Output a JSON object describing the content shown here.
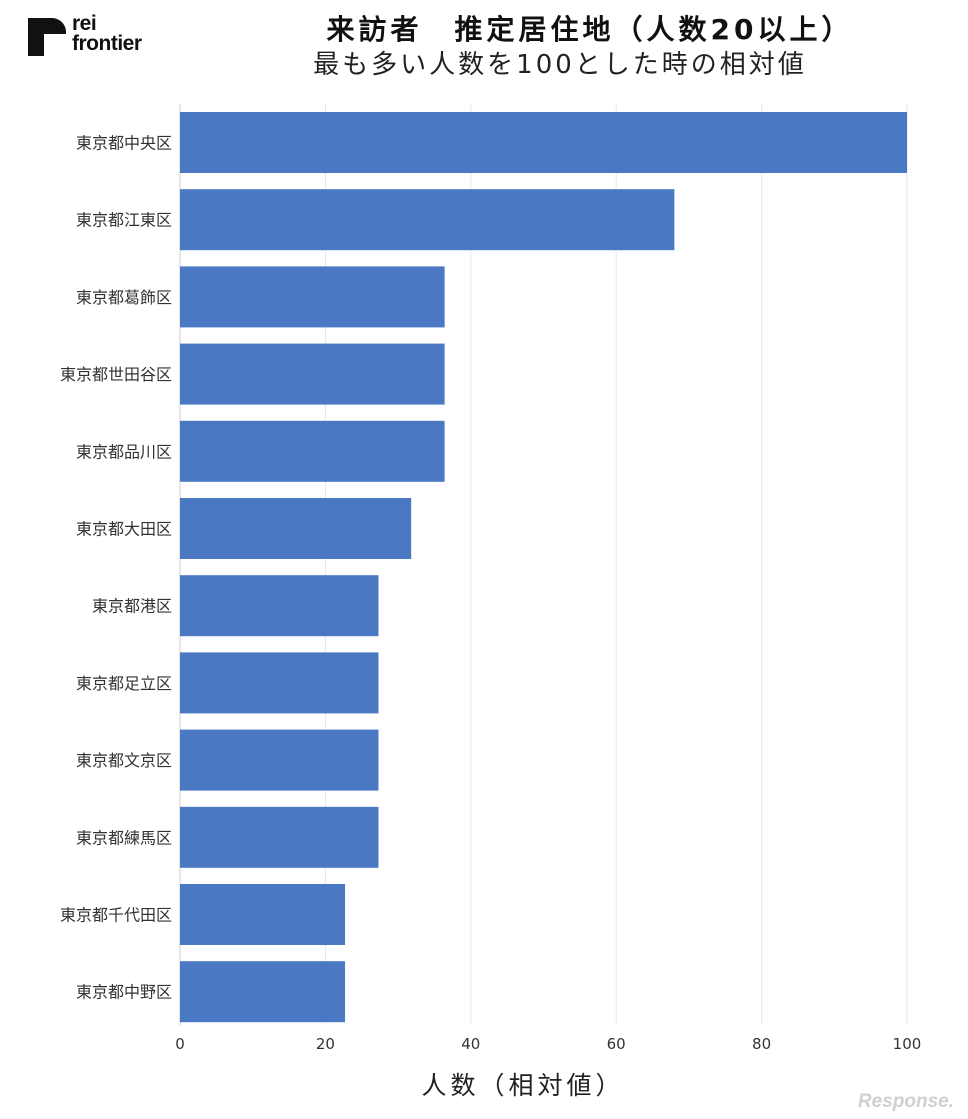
{
  "logo": {
    "line1": "rei",
    "line2": "frontier"
  },
  "watermark": "Response.",
  "chart_data": {
    "type": "bar",
    "orientation": "horizontal",
    "title": "来訪者　推定居住地（人数20以上）",
    "subtitle": "最も多い人数を100とした時の相対値",
    "xlabel": "人数（相対値）",
    "ylabel": "",
    "xlim": [
      0,
      100
    ],
    "xticks": [
      0,
      20,
      40,
      60,
      80,
      100
    ],
    "grid": true,
    "bar_color": "#4a78c2",
    "categories": [
      "東京都中央区",
      "東京都江東区",
      "東京都葛飾区",
      "東京都世田谷区",
      "東京都品川区",
      "東京都大田区",
      "東京都港区",
      "東京都足立区",
      "東京都文京区",
      "東京都練馬区",
      "東京都千代田区",
      "東京都中野区"
    ],
    "values": [
      100,
      68,
      36.4,
      36.4,
      36.4,
      31.8,
      27.3,
      27.3,
      27.3,
      27.3,
      22.7,
      22.7
    ]
  }
}
